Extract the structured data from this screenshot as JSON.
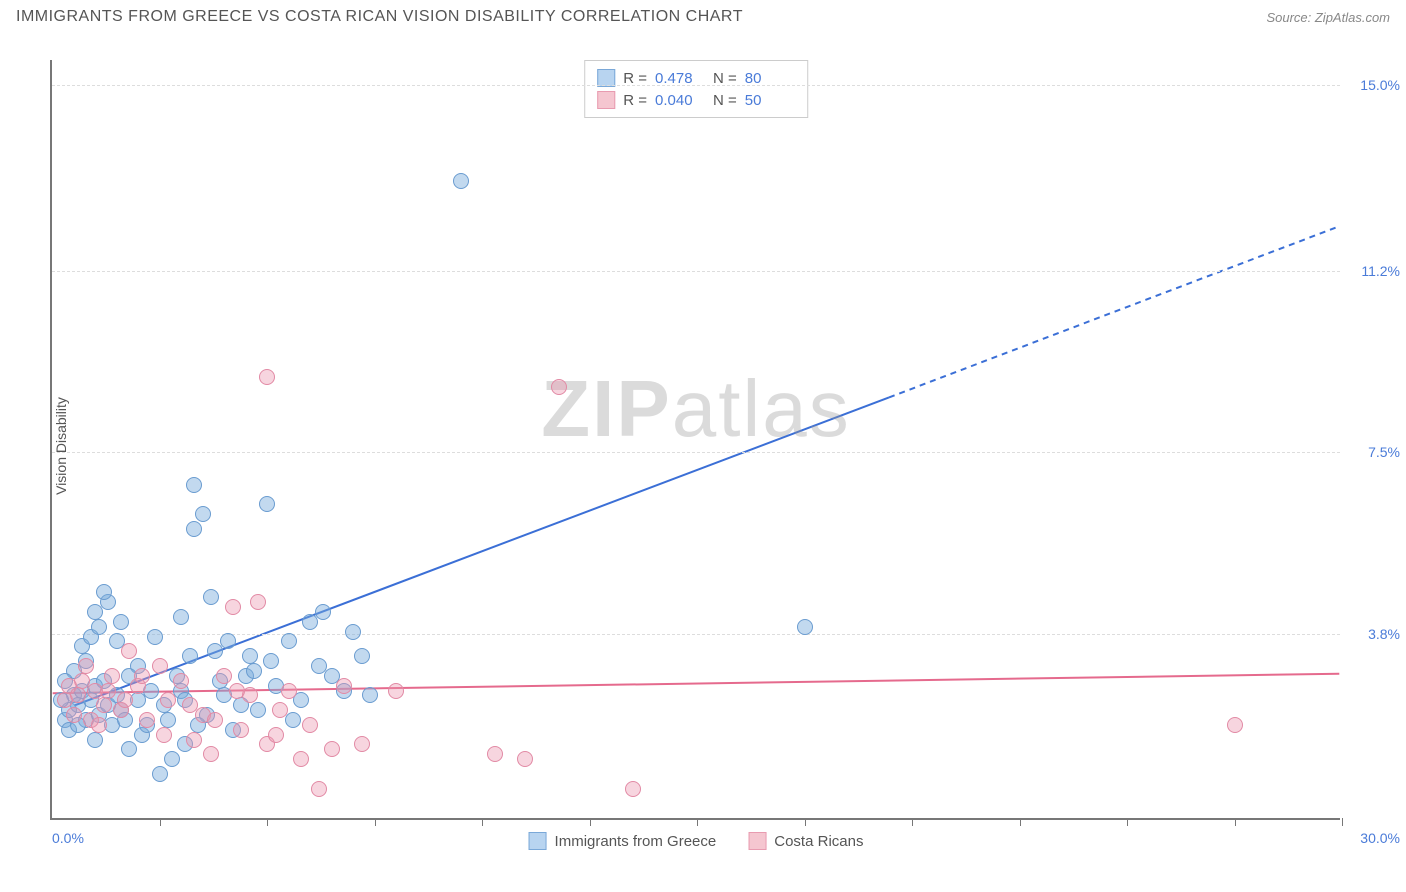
{
  "title": "IMMIGRANTS FROM GREECE VS COSTA RICAN VISION DISABILITY CORRELATION CHART",
  "source": "Source: ZipAtlas.com",
  "watermark_prefix": "ZIP",
  "watermark_suffix": "atlas",
  "chart": {
    "type": "scatter",
    "x_axis": {
      "min": 0.0,
      "max": 30.0,
      "min_label": "0.0%",
      "max_label": "30.0%",
      "tick_count": 12
    },
    "y_axis": {
      "label": "Vision Disability",
      "min": 0.0,
      "max": 15.5,
      "ticks": [
        {
          "value": 3.8,
          "label": "3.8%"
        },
        {
          "value": 7.5,
          "label": "7.5%"
        },
        {
          "value": 11.2,
          "label": "11.2%"
        },
        {
          "value": 15.0,
          "label": "15.0%"
        }
      ]
    },
    "grid_color": "#dddddd",
    "axis_color": "#777777",
    "background_color": "#ffffff",
    "series": [
      {
        "name": "Immigrants from Greece",
        "swatch_fill": "#b8d4f0",
        "swatch_border": "#7aa8d8",
        "point_fill": "rgba(120,170,220,0.45)",
        "point_border": "#6a9cd0",
        "point_radius": 8,
        "line_color": "#3b6fd6",
        "line_width": 2,
        "r_label": "R =",
        "r_value": "0.478",
        "n_label": "N =",
        "n_value": "80",
        "trend": {
          "x1": 0.5,
          "y1": 2.3,
          "x2_solid": 19.5,
          "y2_solid": 8.6,
          "x2_dash": 30.0,
          "y2_dash": 12.1
        },
        "points": [
          [
            0.3,
            2.0
          ],
          [
            0.4,
            2.2
          ],
          [
            0.5,
            2.5
          ],
          [
            0.6,
            2.3
          ],
          [
            0.7,
            2.6
          ],
          [
            0.8,
            2.0
          ],
          [
            0.9,
            2.4
          ],
          [
            1.0,
            2.7
          ],
          [
            0.5,
            3.0
          ],
          [
            0.8,
            3.2
          ],
          [
            1.0,
            1.6
          ],
          [
            1.1,
            2.1
          ],
          [
            1.2,
            2.8
          ],
          [
            1.3,
            2.3
          ],
          [
            1.4,
            1.9
          ],
          [
            1.5,
            2.5
          ],
          [
            1.0,
            4.2
          ],
          [
            1.3,
            4.4
          ],
          [
            1.6,
            2.2
          ],
          [
            1.7,
            2.0
          ],
          [
            1.8,
            1.4
          ],
          [
            2.0,
            2.4
          ],
          [
            2.0,
            3.1
          ],
          [
            2.1,
            1.7
          ],
          [
            2.3,
            2.6
          ],
          [
            2.5,
            0.9
          ],
          [
            2.6,
            2.3
          ],
          [
            2.8,
            1.2
          ],
          [
            3.0,
            2.6
          ],
          [
            3.0,
            4.1
          ],
          [
            3.1,
            1.5
          ],
          [
            3.2,
            3.3
          ],
          [
            3.3,
            6.8
          ],
          [
            3.3,
            5.9
          ],
          [
            3.5,
            6.2
          ],
          [
            3.6,
            2.1
          ],
          [
            3.7,
            4.5
          ],
          [
            3.8,
            3.4
          ],
          [
            4.0,
            2.5
          ],
          [
            4.2,
            1.8
          ],
          [
            4.5,
            2.9
          ],
          [
            4.6,
            3.3
          ],
          [
            4.8,
            2.2
          ],
          [
            5.0,
            6.4
          ],
          [
            5.2,
            2.7
          ],
          [
            5.5,
            3.6
          ],
          [
            5.8,
            2.4
          ],
          [
            6.0,
            4.0
          ],
          [
            6.3,
            4.2
          ],
          [
            6.5,
            2.9
          ],
          [
            7.0,
            3.8
          ],
          [
            7.4,
            2.5
          ],
          [
            9.5,
            13.0
          ],
          [
            17.5,
            3.9
          ],
          [
            0.4,
            1.8
          ],
          [
            0.6,
            1.9
          ],
          [
            0.7,
            3.5
          ],
          [
            0.9,
            3.7
          ],
          [
            1.1,
            3.9
          ],
          [
            1.2,
            4.6
          ],
          [
            1.5,
            3.6
          ],
          [
            1.6,
            4.0
          ],
          [
            1.8,
            2.9
          ],
          [
            2.2,
            1.9
          ],
          [
            2.4,
            3.7
          ],
          [
            2.7,
            2.0
          ],
          [
            2.9,
            2.9
          ],
          [
            3.1,
            2.4
          ],
          [
            3.4,
            1.9
          ],
          [
            3.9,
            2.8
          ],
          [
            4.1,
            3.6
          ],
          [
            4.4,
            2.3
          ],
          [
            4.7,
            3.0
          ],
          [
            5.1,
            3.2
          ],
          [
            5.6,
            2.0
          ],
          [
            6.2,
            3.1
          ],
          [
            6.8,
            2.6
          ],
          [
            7.2,
            3.3
          ],
          [
            0.2,
            2.4
          ],
          [
            0.3,
            2.8
          ]
        ]
      },
      {
        "name": "Costa Ricans",
        "swatch_fill": "#f5c6d0",
        "swatch_border": "#e89bb0",
        "point_fill": "rgba(235,150,175,0.4)",
        "point_border": "#e28aa5",
        "point_radius": 8,
        "line_color": "#e56a8d",
        "line_width": 2,
        "r_label": "R =",
        "r_value": "0.040",
        "n_label": "N =",
        "n_value": "50",
        "trend": {
          "x1": 0.0,
          "y1": 2.55,
          "x2_solid": 30.0,
          "y2_solid": 2.95,
          "x2_dash": 30.0,
          "y2_dash": 2.95
        },
        "points": [
          [
            0.3,
            2.4
          ],
          [
            0.5,
            2.1
          ],
          [
            0.7,
            2.8
          ],
          [
            0.9,
            2.0
          ],
          [
            1.0,
            2.6
          ],
          [
            1.2,
            2.3
          ],
          [
            1.4,
            2.9
          ],
          [
            1.6,
            2.2
          ],
          [
            1.8,
            3.4
          ],
          [
            2.0,
            2.7
          ],
          [
            2.2,
            2.0
          ],
          [
            2.5,
            3.1
          ],
          [
            2.7,
            2.4
          ],
          [
            3.0,
            2.8
          ],
          [
            3.3,
            1.6
          ],
          [
            3.5,
            2.1
          ],
          [
            3.7,
            1.3
          ],
          [
            4.0,
            2.9
          ],
          [
            4.2,
            4.3
          ],
          [
            4.4,
            1.8
          ],
          [
            4.6,
            2.5
          ],
          [
            4.8,
            4.4
          ],
          [
            5.0,
            1.5
          ],
          [
            5.3,
            2.2
          ],
          [
            5.5,
            2.6
          ],
          [
            5.8,
            1.2
          ],
          [
            6.0,
            1.9
          ],
          [
            6.2,
            0.6
          ],
          [
            6.5,
            1.4
          ],
          [
            6.8,
            2.7
          ],
          [
            5.0,
            9.0
          ],
          [
            8.0,
            2.6
          ],
          [
            10.3,
            1.3
          ],
          [
            11.0,
            1.2
          ],
          [
            11.8,
            8.8
          ],
          [
            13.5,
            0.6
          ],
          [
            27.5,
            1.9
          ],
          [
            0.4,
            2.7
          ],
          [
            0.6,
            2.5
          ],
          [
            0.8,
            3.1
          ],
          [
            1.1,
            1.9
          ],
          [
            1.3,
            2.6
          ],
          [
            1.7,
            2.4
          ],
          [
            2.1,
            2.9
          ],
          [
            2.6,
            1.7
          ],
          [
            3.2,
            2.3
          ],
          [
            3.8,
            2.0
          ],
          [
            4.3,
            2.6
          ],
          [
            5.2,
            1.7
          ],
          [
            7.2,
            1.5
          ]
        ]
      }
    ]
  }
}
